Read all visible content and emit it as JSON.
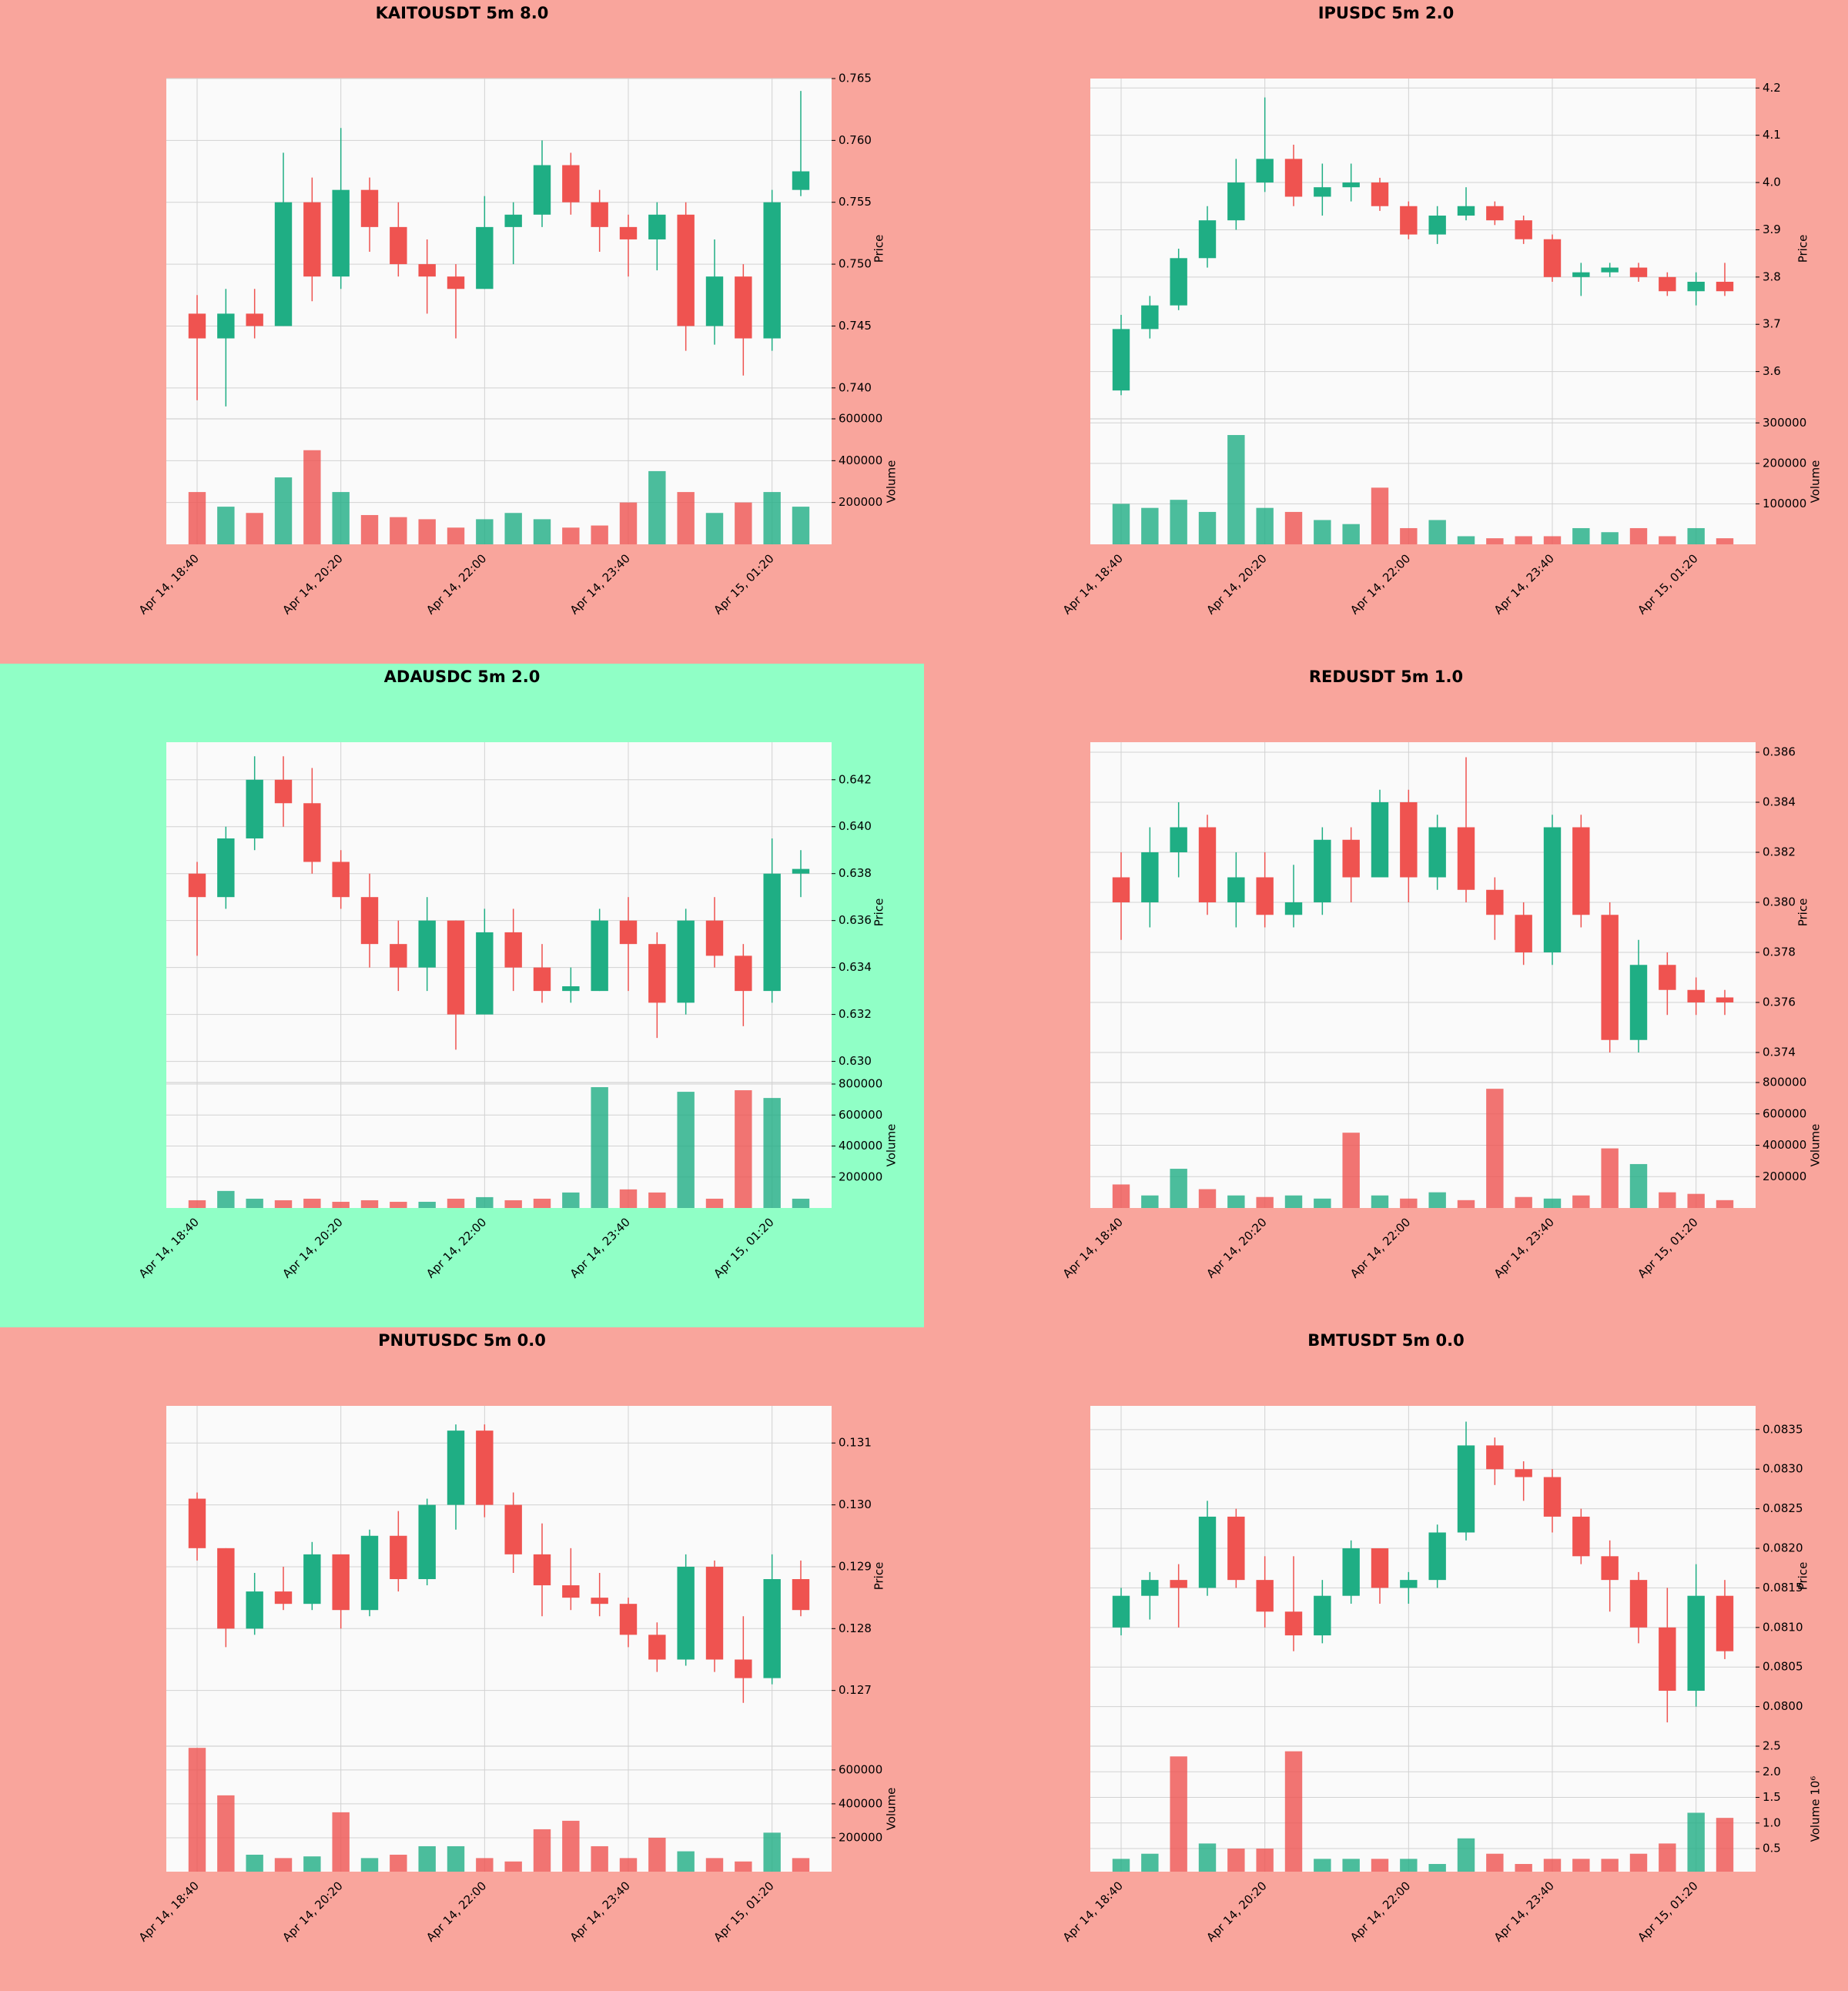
{
  "chart_data": [
    {
      "type": "candlestick",
      "title": "KAITOUSDT 5m 8.0",
      "background": "#f9a59c",
      "up_color": "#1fae84",
      "down_color": "#ef5350",
      "grid": true,
      "ylabel": "Price",
      "volume_ylabel": "Volume",
      "categories": [
        "Apr 14, 18:40",
        null,
        null,
        null,
        null,
        "Apr 14, 20:20",
        null,
        null,
        null,
        null,
        "Apr 14, 22:00",
        null,
        null,
        null,
        null,
        "Apr 14, 23:40",
        null,
        null,
        null,
        null,
        "Apr 15, 01:20",
        null
      ],
      "open": [
        0.746,
        0.744,
        0.746,
        0.745,
        0.755,
        0.749,
        0.756,
        0.753,
        0.75,
        0.749,
        0.748,
        0.753,
        0.754,
        0.758,
        0.755,
        0.753,
        0.752,
        0.754,
        0.745,
        0.749,
        0.744,
        0.756
      ],
      "high": [
        0.7475,
        0.748,
        0.748,
        0.759,
        0.757,
        0.761,
        0.757,
        0.755,
        0.752,
        0.75,
        0.7555,
        0.755,
        0.76,
        0.759,
        0.756,
        0.754,
        0.755,
        0.755,
        0.752,
        0.75,
        0.756,
        0.764
      ],
      "low": [
        0.739,
        0.7385,
        0.744,
        0.745,
        0.747,
        0.748,
        0.751,
        0.749,
        0.746,
        0.744,
        0.748,
        0.75,
        0.753,
        0.754,
        0.751,
        0.749,
        0.7495,
        0.743,
        0.7435,
        0.741,
        0.743,
        0.7555
      ],
      "close": [
        0.744,
        0.746,
        0.745,
        0.755,
        0.749,
        0.756,
        0.753,
        0.75,
        0.749,
        0.748,
        0.753,
        0.754,
        0.758,
        0.755,
        0.753,
        0.752,
        0.754,
        0.745,
        0.749,
        0.744,
        0.755,
        0.7575
      ],
      "volume": [
        250000,
        180000,
        150000,
        320000,
        450000,
        250000,
        140000,
        130000,
        120000,
        80000,
        120000,
        150000,
        120000,
        80000,
        90000,
        200000,
        350000,
        250000,
        150000,
        200000,
        250000,
        180000
      ],
      "ylim": [
        0.7375,
        0.765
      ],
      "yticks": [
        {
          "value": 0.74,
          "label": "0.740"
        },
        0.745,
        {
          "value": 0.75,
          "label": "0.750"
        },
        0.755,
        {
          "value": 0.76,
          "label": "0.760"
        },
        0.765
      ],
      "volume_ylim": [
        0,
        600000
      ],
      "volume_yticks": [
        200000,
        400000,
        600000
      ]
    },
    {
      "type": "candlestick",
      "title": "IPUSDC 5m 2.0",
      "background": "#f9a59c",
      "up_color": "#1fae84",
      "down_color": "#ef5350",
      "grid": true,
      "ylabel": "Price",
      "volume_ylabel": "Volume",
      "categories": [
        "Apr 14, 18:40",
        null,
        null,
        null,
        null,
        "Apr 14, 20:20",
        null,
        null,
        null,
        null,
        "Apr 14, 22:00",
        null,
        null,
        null,
        null,
        "Apr 14, 23:40",
        null,
        null,
        null,
        null,
        "Apr 15, 01:20",
        null
      ],
      "open": [
        3.56,
        3.69,
        3.74,
        3.84,
        3.92,
        4.0,
        4.05,
        3.97,
        3.99,
        4.0,
        3.95,
        3.89,
        3.93,
        3.95,
        3.92,
        3.88,
        3.8,
        3.81,
        3.82,
        3.8,
        3.77,
        3.79
      ],
      "high": [
        3.72,
        3.76,
        3.86,
        3.95,
        4.05,
        4.18,
        4.08,
        4.04,
        4.04,
        4.01,
        3.96,
        3.95,
        3.99,
        3.96,
        3.93,
        3.89,
        3.83,
        3.83,
        3.83,
        3.81,
        3.81,
        3.83
      ],
      "low": [
        3.55,
        3.67,
        3.73,
        3.82,
        3.9,
        3.98,
        3.95,
        3.93,
        3.96,
        3.94,
        3.88,
        3.87,
        3.92,
        3.91,
        3.87,
        3.79,
        3.76,
        3.8,
        3.79,
        3.76,
        3.74,
        3.76
      ],
      "close": [
        3.69,
        3.74,
        3.84,
        3.92,
        4.0,
        4.05,
        3.97,
        3.99,
        4.0,
        3.95,
        3.89,
        3.93,
        3.95,
        3.92,
        3.88,
        3.8,
        3.81,
        3.82,
        3.8,
        3.77,
        3.79,
        3.77
      ],
      "volume": [
        100000,
        90000,
        110000,
        80000,
        270000,
        90000,
        80000,
        60000,
        50000,
        140000,
        40000,
        60000,
        20000,
        15000,
        20000,
        20000,
        40000,
        30000,
        40000,
        20000,
        40000,
        15000
      ],
      "ylim": [
        3.5,
        4.22
      ],
      "yticks": [
        3.6,
        3.7,
        3.8,
        3.9,
        {
          "value": 4,
          "label": "4.0"
        },
        4.1,
        4.2
      ],
      "volume_ylim": [
        0,
        310000
      ],
      "volume_yticks": [
        100000,
        200000,
        300000
      ]
    },
    {
      "type": "candlestick",
      "title": "ADAUSDC 5m 2.0",
      "background": "#90ffc6",
      "up_color": "#1fae84",
      "down_color": "#ef5350",
      "grid": true,
      "ylabel": "Price",
      "volume_ylabel": "Volume",
      "categories": [
        "Apr 14, 18:40",
        null,
        null,
        null,
        null,
        "Apr 14, 20:20",
        null,
        null,
        null,
        null,
        "Apr 14, 22:00",
        null,
        null,
        null,
        null,
        "Apr 14, 23:40",
        null,
        null,
        null,
        null,
        "Apr 15, 01:20",
        null
      ],
      "open": [
        0.638,
        0.637,
        0.6395,
        0.642,
        0.641,
        0.6385,
        0.637,
        0.635,
        0.634,
        0.636,
        0.632,
        0.6355,
        0.634,
        0.633,
        0.633,
        0.636,
        0.635,
        0.6325,
        0.636,
        0.6345,
        0.633,
        0.638
      ],
      "high": [
        0.6385,
        0.64,
        0.643,
        0.643,
        0.6425,
        0.639,
        0.638,
        0.636,
        0.637,
        0.636,
        0.6365,
        0.6365,
        0.635,
        0.634,
        0.6365,
        0.637,
        0.6355,
        0.6365,
        0.637,
        0.635,
        0.6395,
        0.639
      ],
      "low": [
        0.6345,
        0.6365,
        0.639,
        0.64,
        0.638,
        0.6365,
        0.634,
        0.633,
        0.633,
        0.6305,
        0.632,
        0.633,
        0.6325,
        0.6325,
        0.633,
        0.633,
        0.631,
        0.632,
        0.634,
        0.6315,
        0.6325,
        0.637
      ],
      "close": [
        0.637,
        0.6395,
        0.642,
        0.641,
        0.6385,
        0.637,
        0.635,
        0.634,
        0.636,
        0.632,
        0.6355,
        0.634,
        0.633,
        0.6332,
        0.636,
        0.635,
        0.6325,
        0.636,
        0.6345,
        0.633,
        0.638,
        0.6382
      ],
      "volume": [
        50000,
        110000,
        60000,
        50000,
        60000,
        40000,
        50000,
        40000,
        40000,
        60000,
        70000,
        50000,
        60000,
        100000,
        780000,
        120000,
        100000,
        750000,
        60000,
        760000,
        710000,
        60000
      ],
      "ylim": [
        0.6291,
        0.6436
      ],
      "yticks": [
        {
          "value": 0.63,
          "label": "0.630"
        },
        0.632,
        0.634,
        0.636,
        0.638,
        {
          "value": 0.64,
          "label": "0.640"
        },
        0.642
      ],
      "volume_ylim": [
        0,
        810000
      ],
      "volume_yticks": [
        200000,
        400000,
        600000,
        800000
      ]
    },
    {
      "type": "candlestick",
      "title": "REDUSDT 5m 1.0",
      "background": "#f9a59c",
      "up_color": "#1fae84",
      "down_color": "#ef5350",
      "grid": true,
      "ylabel": "Price",
      "volume_ylabel": "Volume",
      "categories": [
        "Apr 14, 18:40",
        null,
        null,
        null,
        null,
        "Apr 14, 20:20",
        null,
        null,
        null,
        null,
        "Apr 14, 22:00",
        null,
        null,
        null,
        null,
        "Apr 14, 23:40",
        null,
        null,
        null,
        null,
        "Apr 15, 01:20",
        null
      ],
      "open": [
        0.381,
        0.38,
        0.382,
        0.383,
        0.38,
        0.381,
        0.3795,
        0.38,
        0.3825,
        0.381,
        0.384,
        0.381,
        0.383,
        0.3805,
        0.3795,
        0.378,
        0.383,
        0.3795,
        0.3745,
        0.3775,
        0.3765,
        0.3762
      ],
      "high": [
        0.382,
        0.383,
        0.384,
        0.3835,
        0.382,
        0.382,
        0.3815,
        0.383,
        0.383,
        0.3845,
        0.3845,
        0.3835,
        0.3858,
        0.381,
        0.38,
        0.3835,
        0.3835,
        0.38,
        0.3785,
        0.378,
        0.377,
        0.3765
      ],
      "low": [
        0.3785,
        0.379,
        0.381,
        0.3795,
        0.379,
        0.379,
        0.379,
        0.3795,
        0.38,
        0.381,
        0.38,
        0.3805,
        0.38,
        0.3785,
        0.3775,
        0.3775,
        0.379,
        0.374,
        0.374,
        0.3755,
        0.3755,
        0.3755
      ],
      "close": [
        0.38,
        0.382,
        0.383,
        0.38,
        0.381,
        0.3795,
        0.38,
        0.3825,
        0.381,
        0.384,
        0.381,
        0.383,
        0.3805,
        0.3795,
        0.378,
        0.383,
        0.3795,
        0.3745,
        0.3775,
        0.3765,
        0.376,
        0.376
      ],
      "volume": [
        150000,
        80000,
        250000,
        120000,
        80000,
        70000,
        80000,
        60000,
        480000,
        80000,
        60000,
        100000,
        50000,
        760000,
        70000,
        60000,
        80000,
        380000,
        280000,
        100000,
        90000,
        50000
      ],
      "ylim": [
        0.3728,
        0.3864
      ],
      "yticks": [
        0.374,
        0.376,
        0.378,
        {
          "value": 0.38,
          "label": "0.380"
        },
        0.382,
        0.384,
        0.386
      ],
      "volume_ylim": [
        0,
        800000
      ],
      "volume_yticks": [
        200000,
        400000,
        600000,
        800000
      ]
    },
    {
      "type": "candlestick",
      "title": "PNUTUSDC 5m 0.0",
      "background": "#f9a59c",
      "up_color": "#1fae84",
      "down_color": "#ef5350",
      "grid": true,
      "ylabel": "Price",
      "volume_ylabel": "Volume",
      "categories": [
        "Apr 14, 18:40",
        null,
        null,
        null,
        null,
        "Apr 14, 20:20",
        null,
        null,
        null,
        null,
        "Apr 14, 22:00",
        null,
        null,
        null,
        null,
        "Apr 14, 23:40",
        null,
        null,
        null,
        null,
        "Apr 15, 01:20",
        null
      ],
      "open": [
        0.1301,
        0.1293,
        0.128,
        0.1286,
        0.1284,
        0.1292,
        0.1283,
        0.1295,
        0.1288,
        0.13,
        0.1312,
        0.13,
        0.1292,
        0.1287,
        0.1285,
        0.1284,
        0.1279,
        0.1275,
        0.129,
        0.1275,
        0.1272,
        0.1288
      ],
      "high": [
        0.1302,
        0.1293,
        0.1289,
        0.129,
        0.1294,
        0.1292,
        0.1296,
        0.1299,
        0.1301,
        0.1313,
        0.1313,
        0.1302,
        0.1297,
        0.1293,
        0.1289,
        0.1285,
        0.1281,
        0.1292,
        0.1291,
        0.1282,
        0.1292,
        0.1291
      ],
      "low": [
        0.1291,
        0.1277,
        0.1279,
        0.1283,
        0.1283,
        0.128,
        0.1282,
        0.1286,
        0.1287,
        0.1296,
        0.1298,
        0.1289,
        0.1282,
        0.1283,
        0.1282,
        0.1277,
        0.1273,
        0.1274,
        0.1273,
        0.1268,
        0.1271,
        0.1282
      ],
      "close": [
        0.1293,
        0.128,
        0.1286,
        0.1284,
        0.1292,
        0.1283,
        0.1295,
        0.1288,
        0.13,
        0.1312,
        0.13,
        0.1292,
        0.1287,
        0.1285,
        0.1284,
        0.1279,
        0.1275,
        0.129,
        0.1275,
        0.1272,
        0.1288,
        0.1283
      ],
      "volume": [
        730000,
        450000,
        100000,
        80000,
        90000,
        350000,
        80000,
        100000,
        150000,
        150000,
        80000,
        60000,
        250000,
        300000,
        150000,
        80000,
        200000,
        120000,
        80000,
        60000,
        230000,
        80000
      ],
      "ylim": [
        0.1261,
        0.1316
      ],
      "yticks": [
        0.127,
        0.128,
        0.129,
        {
          "value": 0.13,
          "label": "0.130"
        },
        0.131
      ],
      "volume_ylim": [
        0,
        740000
      ],
      "volume_yticks": [
        200000,
        400000,
        600000
      ]
    },
    {
      "type": "candlestick",
      "title": "BMTUSDT 5m 0.0",
      "background": "#f9a59c",
      "up_color": "#1fae84",
      "down_color": "#ef5350",
      "grid": true,
      "ylabel": "Price",
      "volume_ylabel": "Volume 10⁶",
      "categories": [
        "Apr 14, 18:40",
        null,
        null,
        null,
        null,
        "Apr 14, 20:20",
        null,
        null,
        null,
        null,
        "Apr 14, 22:00",
        null,
        null,
        null,
        null,
        "Apr 14, 23:40",
        null,
        null,
        null,
        null,
        "Apr 15, 01:20",
        null
      ],
      "open": [
        0.081,
        0.0814,
        0.0816,
        0.0815,
        0.0824,
        0.0816,
        0.0812,
        0.0809,
        0.0814,
        0.082,
        0.0815,
        0.0816,
        0.0822,
        0.0833,
        0.083,
        0.0829,
        0.0824,
        0.0819,
        0.0816,
        0.081,
        0.0802,
        0.0814
      ],
      "high": [
        0.0815,
        0.0817,
        0.0818,
        0.0826,
        0.0825,
        0.0819,
        0.0819,
        0.0816,
        0.0821,
        0.082,
        0.0817,
        0.0823,
        0.0836,
        0.0834,
        0.0831,
        0.083,
        0.0825,
        0.0821,
        0.0817,
        0.0815,
        0.0818,
        0.0816
      ],
      "low": [
        0.0809,
        0.0811,
        0.081,
        0.0814,
        0.0815,
        0.081,
        0.0807,
        0.0808,
        0.0813,
        0.0813,
        0.0813,
        0.0815,
        0.0821,
        0.0828,
        0.0826,
        0.0822,
        0.0818,
        0.0812,
        0.0808,
        0.0798,
        0.08,
        0.0806
      ],
      "close": [
        0.0814,
        0.0816,
        0.0815,
        0.0824,
        0.0816,
        0.0812,
        0.0809,
        0.0814,
        0.082,
        0.0815,
        0.0816,
        0.0822,
        0.0833,
        0.083,
        0.0829,
        0.0824,
        0.0819,
        0.0816,
        0.081,
        0.0802,
        0.0814,
        0.0807
      ],
      "volume": [
        0.3,
        0.4,
        2.3,
        0.6,
        0.5,
        0.5,
        2.4,
        0.3,
        0.3,
        0.3,
        0.3,
        0.2,
        0.7,
        0.4,
        0.2,
        0.3,
        0.3,
        0.3,
        0.4,
        0.6,
        1.2,
        1.1
      ],
      "ylim": [
        0.0795,
        0.0838
      ],
      "yticks": [
        {
          "value": 0.08,
          "label": "0.0800"
        },
        0.0805,
        {
          "value": 0.081,
          "label": "0.0810"
        },
        0.0815,
        {
          "value": 0.082,
          "label": "0.0820"
        },
        0.0825,
        {
          "value": 0.083,
          "label": "0.0830"
        },
        0.0835
      ],
      "volume_ylim": [
        0.05,
        2.5
      ],
      "volume_yticks": [
        0.5,
        {
          "value": 1,
          "label": "1.0"
        },
        1.5,
        {
          "value": 2,
          "label": "2.0"
        },
        2.5
      ]
    }
  ]
}
